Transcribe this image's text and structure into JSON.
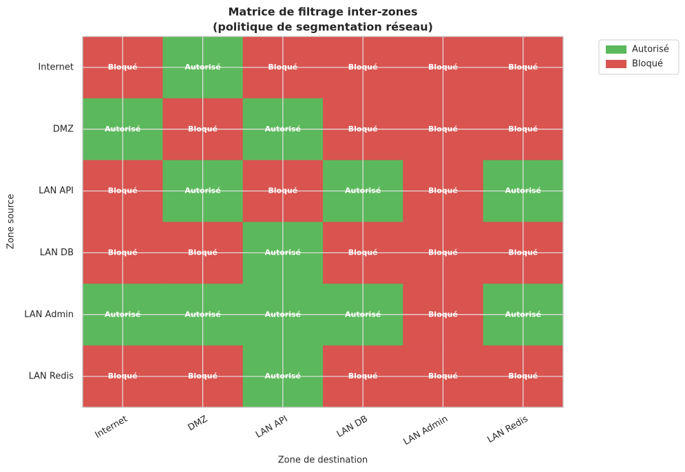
{
  "chart_data": {
    "type": "heatmap",
    "title": [
      "Matrice de filtrage inter-zones",
      "(politique de segmentation réseau)"
    ],
    "x_label": "Zone de destination",
    "y_label": "Zone source",
    "columns": [
      "Internet",
      "DMZ",
      "LAN API",
      "LAN DB",
      "LAN Admin",
      "LAN Redis"
    ],
    "rows": [
      "Internet",
      "DMZ",
      "LAN API",
      "LAN DB",
      "LAN Admin",
      "LAN Redis"
    ],
    "cells": [
      [
        "Bloqué",
        "Autorisé",
        "Bloqué",
        "Bloqué",
        "Bloqué",
        "Bloqué"
      ],
      [
        "Autorisé",
        "Bloqué",
        "Autorisé",
        "Bloqué",
        "Bloqué",
        "Bloqué"
      ],
      [
        "Bloqué",
        "Autorisé",
        "Bloqué",
        "Autorisé",
        "Bloqué",
        "Autorisé"
      ],
      [
        "Bloqué",
        "Bloqué",
        "Autorisé",
        "Bloqué",
        "Bloqué",
        "Bloqué"
      ],
      [
        "Autorisé",
        "Autorisé",
        "Autorisé",
        "Autorisé",
        "Bloqué",
        "Autorisé"
      ],
      [
        "Bloqué",
        "Bloqué",
        "Autorisé",
        "Bloqué",
        "Bloqué",
        "Bloqué"
      ]
    ],
    "legend": [
      {
        "name": "Autorisé",
        "color": "#5cb85c"
      },
      {
        "name": "Bloqué",
        "color": "#d9534f"
      }
    ],
    "legend_position": "upper right outside",
    "grid": true
  }
}
